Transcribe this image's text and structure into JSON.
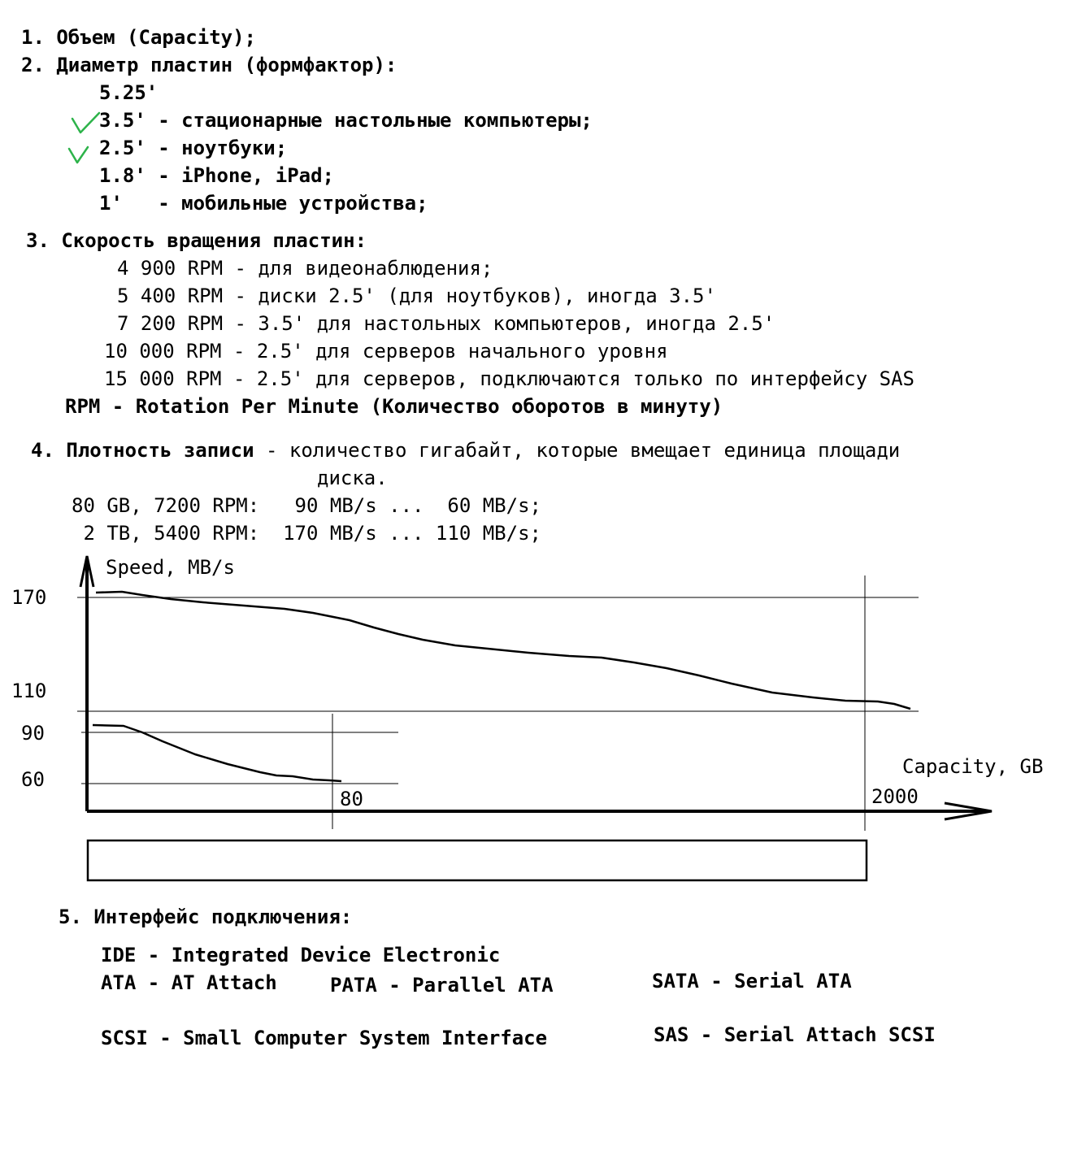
{
  "section1": {
    "title": "1. Объем (Capacity);"
  },
  "section2": {
    "title": "2. Диаметр пластин (формфактор):",
    "items": [
      "5.25'",
      "3.5' - стационарные настольные компьютеры;",
      "2.5' - ноутбуки;",
      "1.8' - iPhone, iPad;",
      "1'   - мобильные устройства;"
    ],
    "check_color": "#2db34a"
  },
  "section3": {
    "title": "3. Скорость вращения пластин:",
    "items": [
      "4 900 RPM - для видеонаблюдения;",
      "5 400 RPM - диски 2.5' (для ноутбуков), иногда 3.5'",
      "7 200 RPM - 3.5' для настольных компьютеров, иногда 2.5'",
      "10 000 RPM - 2.5' для серверов начального уровня",
      "15 000 RPM - 2.5' для серверов, подключаются только по интерфейсу SAS"
    ],
    "note": "RPM - Rotation Per Minute (Количество оборотов в минуту)"
  },
  "section4": {
    "title": "4. Плотность записи",
    "desc_line1": " - количество гигабайт, которые вмещает единица площади",
    "desc_line2": "диска.",
    "row1": "80 GB, 7200 RPM:   90 MB/s ...  60 MB/s;",
    "row2": " 2 TB, 5400 RPM:  170 MB/s ... 110 MB/s;"
  },
  "chart_data": {
    "type": "line",
    "ylabel": "Speed, MB/s",
    "xlabel": "Capacity, GB",
    "y_ticks": [
      "170",
      "110",
      "90",
      "60"
    ],
    "x_ticks": [
      "80",
      "2000"
    ],
    "series": [
      {
        "x": [
          0,
          2000
        ],
        "y": [
          170,
          110
        ]
      },
      {
        "x": [
          0,
          80
        ],
        "y": [
          90,
          60
        ]
      }
    ]
  },
  "section5": {
    "title": "5. Интерфейс подключения:",
    "ide": "IDE - Integrated Device Electronic",
    "ata": "ATA - AT Attach",
    "pata": "PATA - Parallel ATA",
    "sata": "SATA - Serial ATA",
    "scsi": "SCSI - Small Computer System Interface",
    "sas": "SAS - Serial Attach SCSI"
  }
}
